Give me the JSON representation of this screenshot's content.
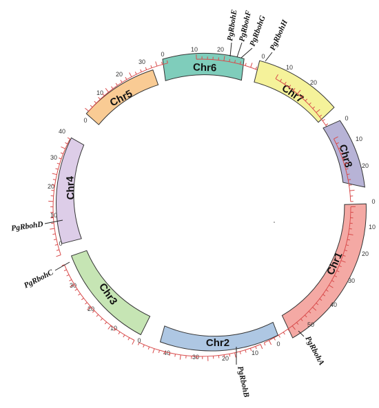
{
  "chromosomes": [
    {
      "id": "chr6",
      "label": "Chr6",
      "fill": "#7fcdbb",
      "ticks": [
        "0",
        "10",
        "20"
      ]
    },
    {
      "id": "chr7",
      "label": "Chr7",
      "fill": "#f5f29a",
      "ticks": [
        "0",
        "10",
        "20"
      ]
    },
    {
      "id": "chr8",
      "label": "Chr8",
      "fill": "#b7b3d6",
      "ticks": [
        "0",
        "10",
        "20"
      ]
    },
    {
      "id": "chr1",
      "label": "Chr1",
      "fill": "#f4a9a4",
      "ticks": [
        "0",
        "10",
        "20",
        "30",
        "40",
        "50"
      ]
    },
    {
      "id": "chr2",
      "label": "Chr2",
      "fill": "#aec7e3",
      "ticks": [
        "0",
        "10",
        "20",
        "30",
        "40"
      ]
    },
    {
      "id": "chr3",
      "label": "Chr3",
      "fill": "#c6e5b4",
      "ticks": [
        "0",
        "10",
        "20",
        "30"
      ]
    },
    {
      "id": "chr4",
      "label": "Chr4",
      "fill": "#ddcde8",
      "ticks": [
        "0",
        "10",
        "20",
        "30",
        "40"
      ]
    },
    {
      "id": "chr5",
      "label": "Chr5",
      "fill": "#f9cb94",
      "ticks": [
        "0",
        "10",
        "20",
        "30"
      ]
    }
  ],
  "genes": [
    {
      "label": "PgRbohE",
      "chromosome": "Chr6"
    },
    {
      "label": "PgRbohF",
      "chromosome": "Chr6"
    },
    {
      "label": "PgRbohG",
      "chromosome": "Chr6"
    },
    {
      "label": "PgRbohH",
      "chromosome": "Chr7"
    },
    {
      "label": "PgRbohA",
      "chromosome": "Chr1"
    },
    {
      "label": "PgRbohB",
      "chromosome": "Chr2"
    },
    {
      "label": "PgRbohC",
      "chromosome": "Chr3"
    },
    {
      "label": "PgRbohD",
      "chromosome": "Chr4"
    }
  ]
}
